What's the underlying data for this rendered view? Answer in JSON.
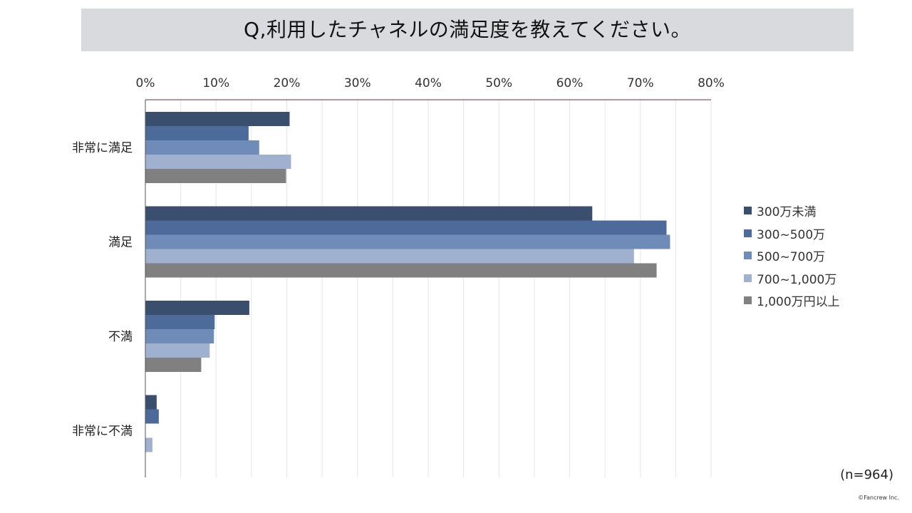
{
  "title": "Q,利用したチャネルの満足度を教えてください。",
  "n_label": "(n=964)",
  "copyright": "©Fancrew Inc.",
  "chart_data": {
    "type": "bar",
    "orientation": "horizontal",
    "title": "Q,利用したチャネルの満足度を教えてください。",
    "categories": [
      "非常に満足",
      "満足",
      "不満",
      "非常に不満"
    ],
    "x_ticks": [
      "0%",
      "10%",
      "20%",
      "30%",
      "40%",
      "50%",
      "60%",
      "70%",
      "80%"
    ],
    "xlim": [
      0,
      80
    ],
    "x_axis_position": "top",
    "grid": true,
    "legend_position": "right",
    "series": [
      {
        "name": "300万未満",
        "color": "#3a4e6e",
        "values": [
          20.4,
          63.2,
          14.7,
          1.6
        ]
      },
      {
        "name": "300~500万",
        "color": "#4c6a9a",
        "values": [
          14.6,
          73.7,
          9.8,
          1.9
        ]
      },
      {
        "name": "500~700万",
        "color": "#6f8cb8",
        "values": [
          16.1,
          74.2,
          9.7,
          0
        ]
      },
      {
        "name": "700~1,000万",
        "color": "#9fb1cf",
        "values": [
          20.6,
          69.1,
          9.1,
          1.0
        ]
      },
      {
        "name": "1,000万円以上",
        "color": "#808080",
        "values": [
          19.9,
          72.3,
          7.9,
          0
        ]
      }
    ]
  }
}
